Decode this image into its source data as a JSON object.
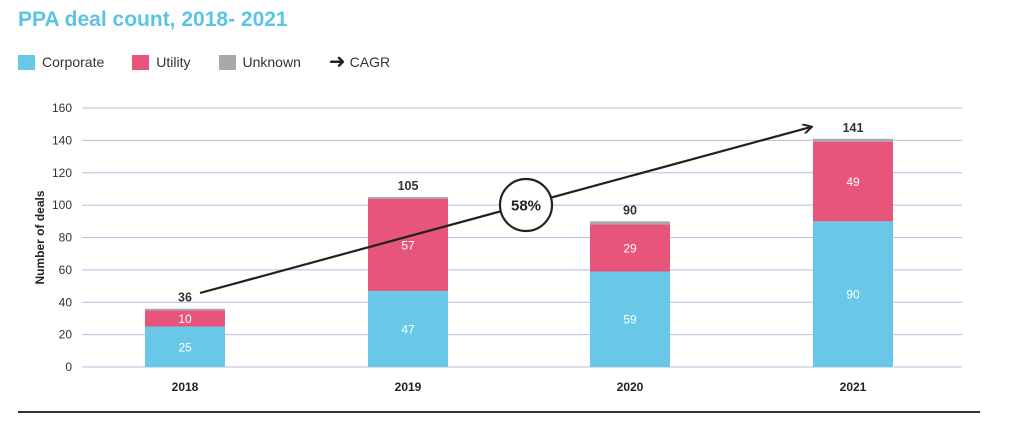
{
  "chart_data": {
    "type": "bar",
    "stacked": true,
    "title": "PPA deal count, 2018- 2021",
    "ylabel": "Number of deals",
    "xlabel": "",
    "ylim": [
      0,
      160
    ],
    "yticks": [
      0,
      20,
      40,
      60,
      80,
      100,
      120,
      140,
      160
    ],
    "grid": true,
    "legend_position": "top-left",
    "categories": [
      "2018",
      "2019",
      "2020",
      "2021"
    ],
    "series": [
      {
        "name": "Corporate",
        "color": "#69c8e8",
        "values": [
          25,
          47,
          59,
          90
        ]
      },
      {
        "name": "Utility",
        "color": "#e8557a",
        "values": [
          10,
          57,
          29,
          49
        ]
      },
      {
        "name": "Unknown",
        "color": "#a9a9a9",
        "values": [
          1,
          1,
          2,
          2
        ]
      }
    ],
    "totals": [
      36,
      105,
      90,
      141
    ],
    "cagr": {
      "label": "CAGR",
      "value": "58%"
    }
  }
}
